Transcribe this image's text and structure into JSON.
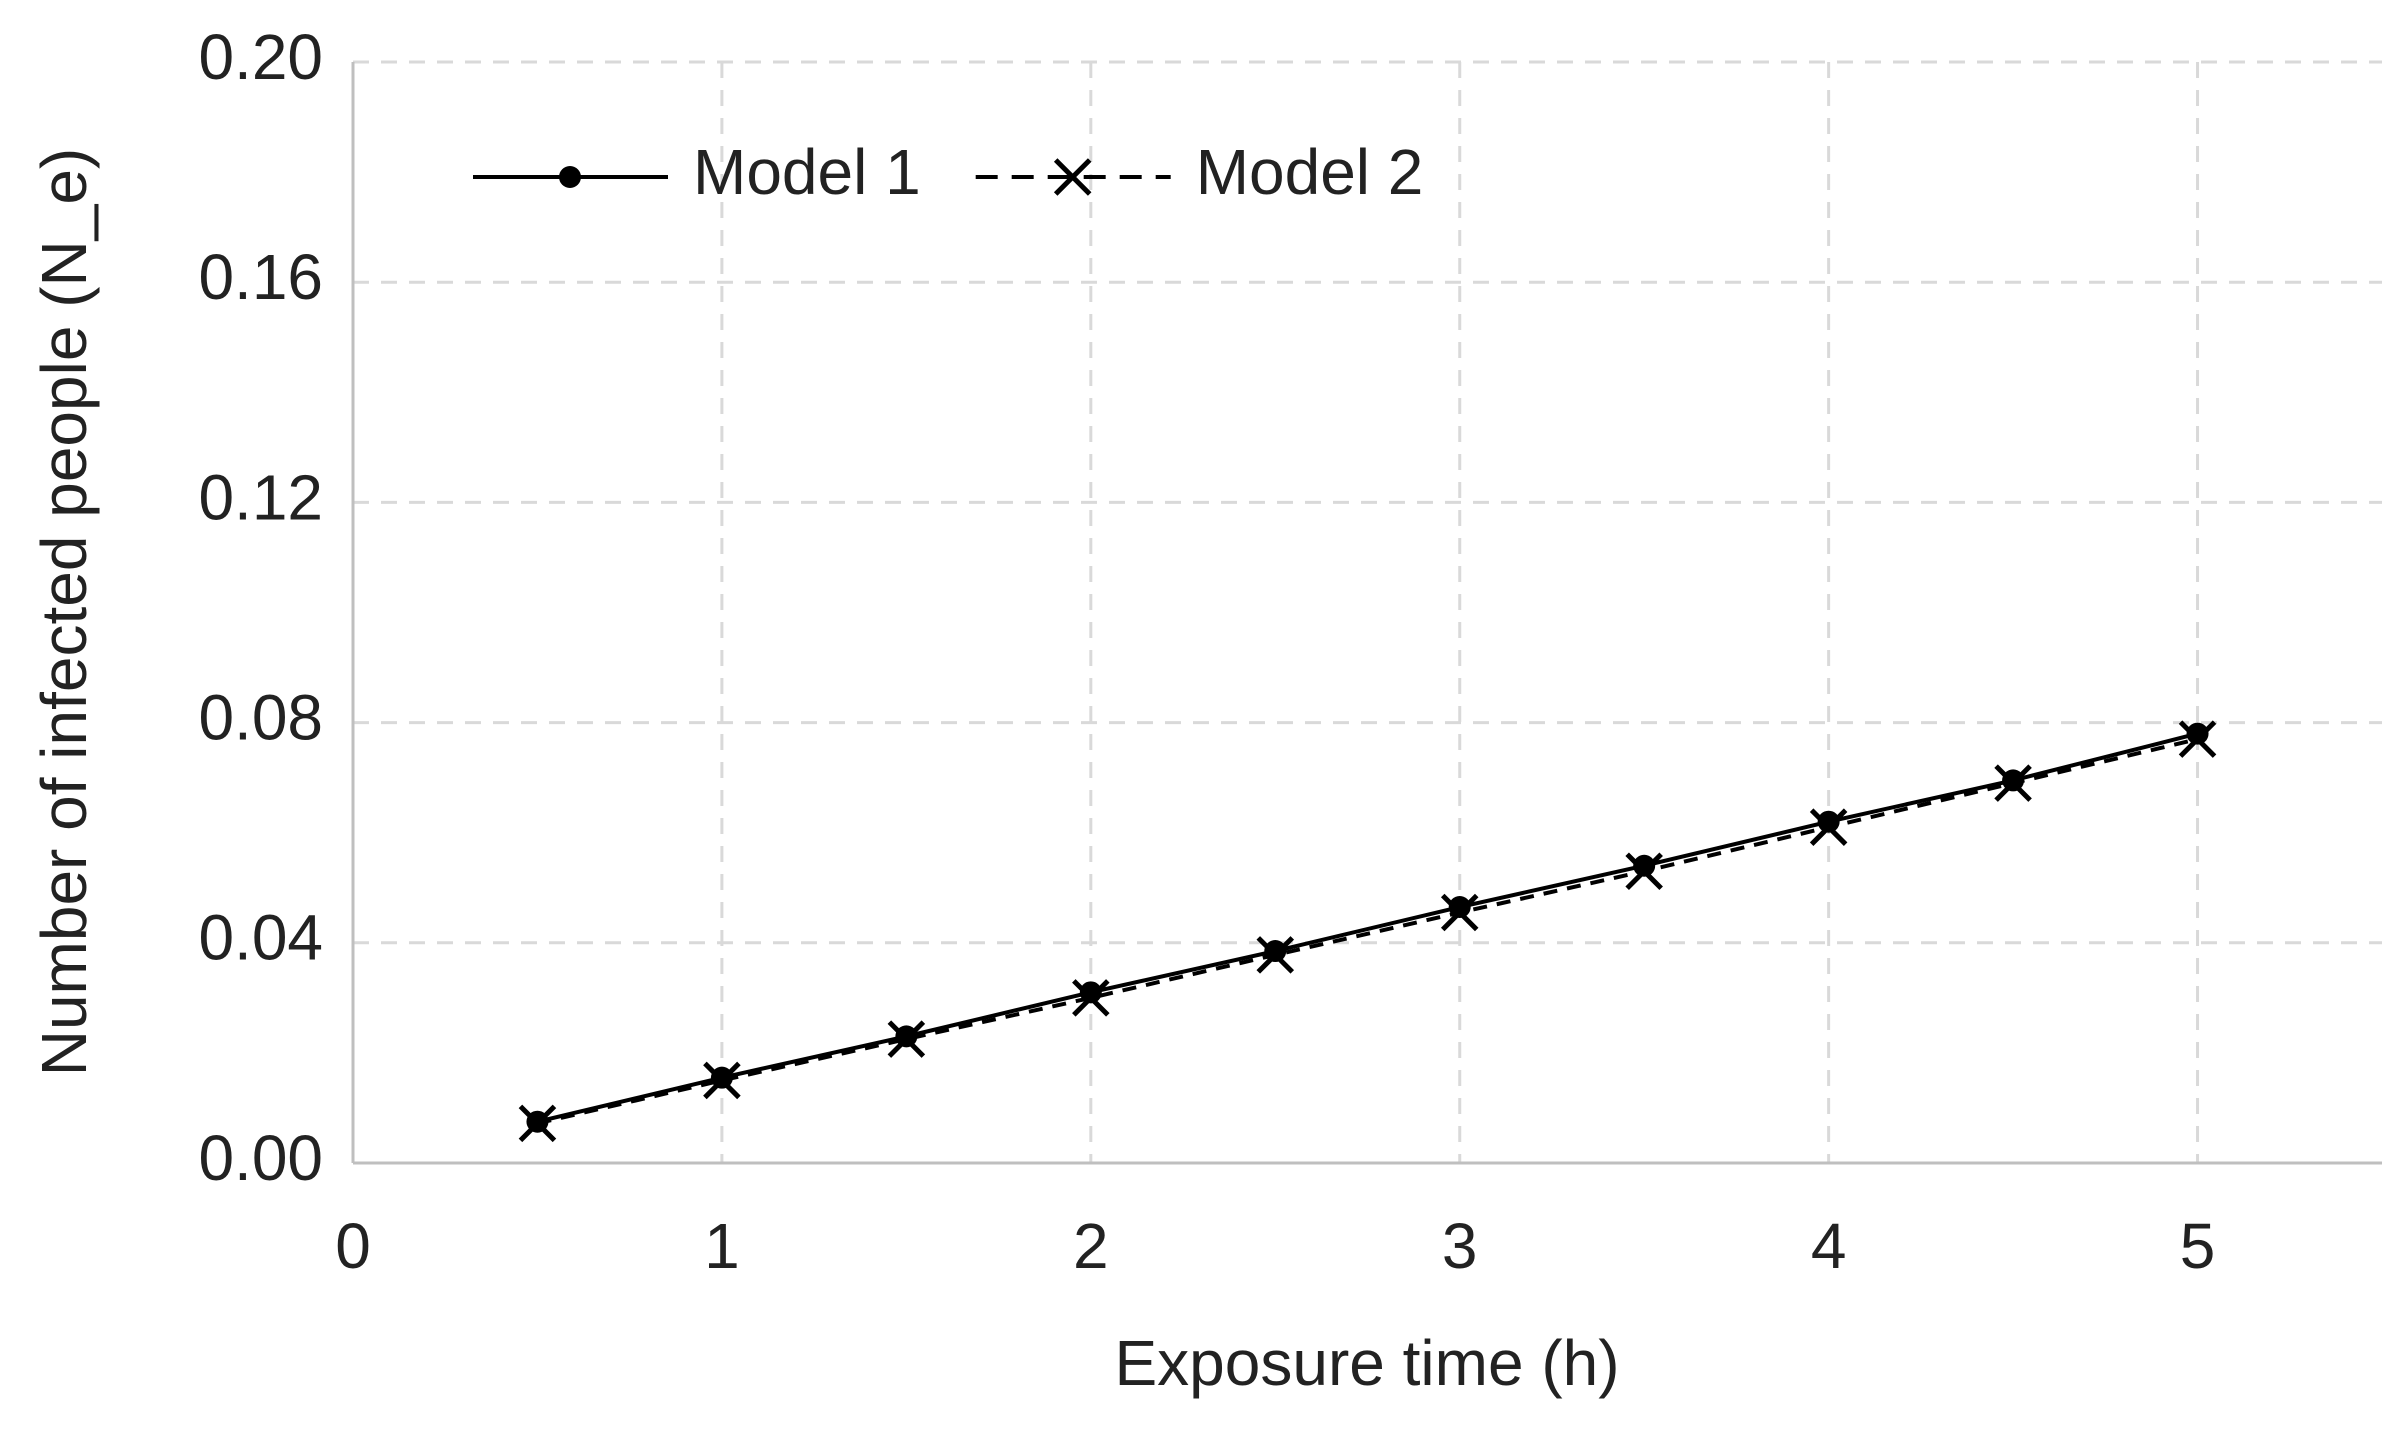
{
  "chart_data": {
    "type": "line",
    "xlabel": "Exposure time (h)",
    "ylabel": "Number of infected people (N_e)",
    "x": [
      0.5,
      1,
      1.5,
      2,
      2.5,
      3,
      3.5,
      4,
      4.5,
      5
    ],
    "series": [
      {
        "name": "Model 1",
        "color": "#000000",
        "marker": "circle",
        "dashed": false,
        "values": [
          0.0075,
          0.0155,
          0.023,
          0.031,
          0.0385,
          0.0465,
          0.054,
          0.062,
          0.0695,
          0.078
        ]
      },
      {
        "name": "Model 2",
        "color": "#000000",
        "marker": "x",
        "dashed": true,
        "values": [
          0.0072,
          0.015,
          0.0225,
          0.03,
          0.0378,
          0.0455,
          0.053,
          0.061,
          0.069,
          0.077
        ]
      }
    ],
    "xlim": [
      0,
      5.5
    ],
    "xticks": [
      0,
      1,
      2,
      3,
      4,
      5
    ],
    "ylim": [
      0,
      0.2
    ],
    "yticks": [
      {
        "value": 0,
        "label": "0.00"
      },
      {
        "value": 0.04,
        "label": "0.04"
      },
      {
        "value": 0.08,
        "label": "0.08"
      },
      {
        "value": 0.12,
        "label": "0.12"
      },
      {
        "value": 0.16,
        "label": "0.16"
      },
      {
        "value": 0.2,
        "label": "0.20"
      }
    ],
    "grid": true,
    "legend": "upper left"
  }
}
